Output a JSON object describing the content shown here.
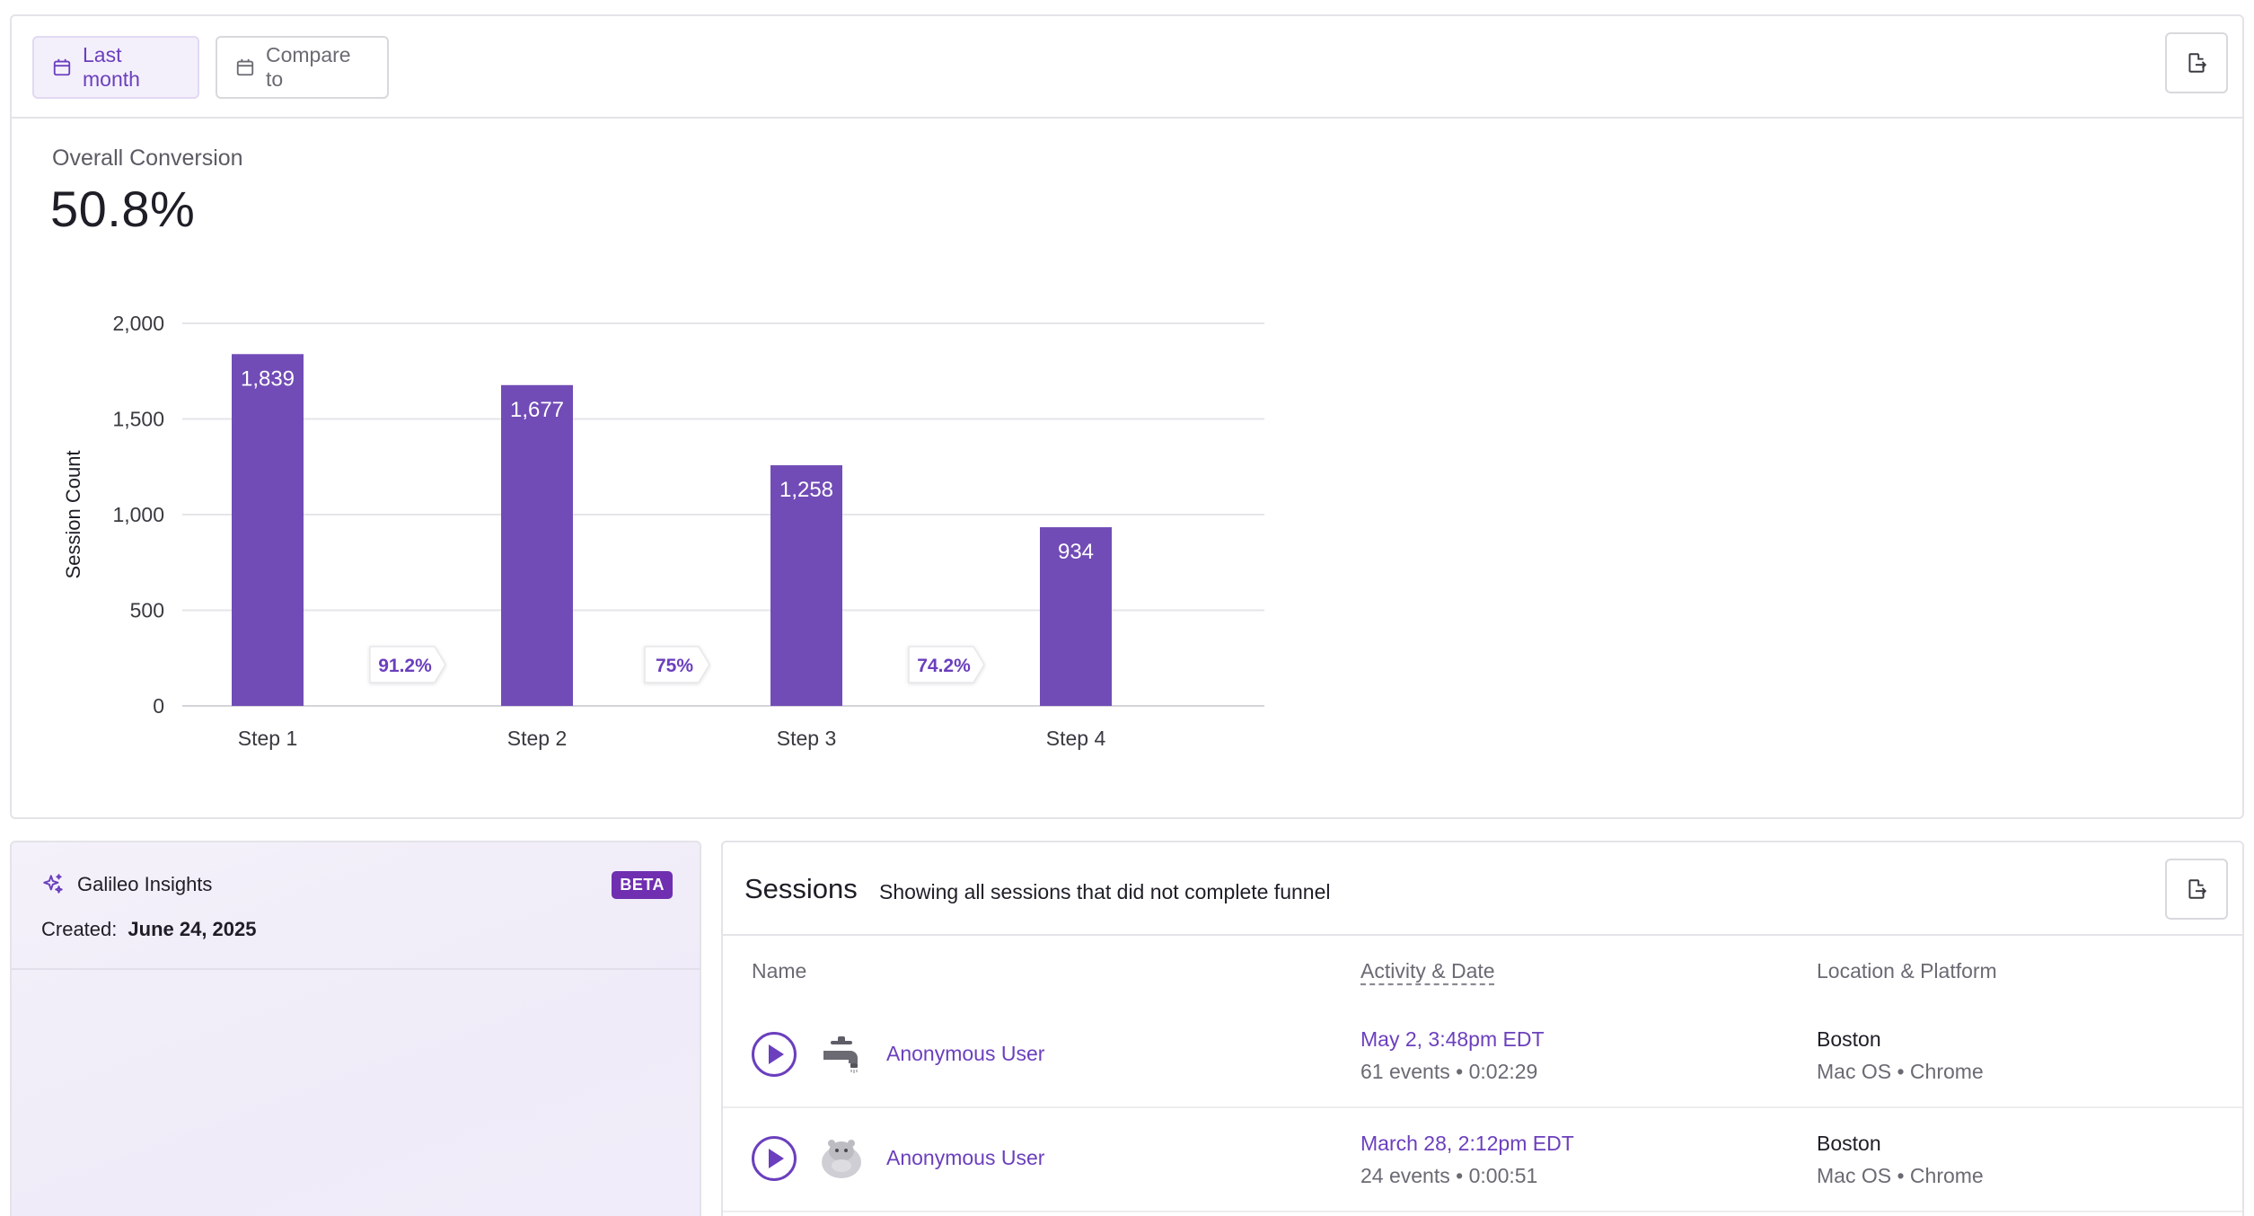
{
  "toolbar": {
    "date_range_label": "Last month",
    "compare_label": "Compare to"
  },
  "overall": {
    "label": "Overall Conversion",
    "value": "50.8%"
  },
  "chart_data": {
    "type": "bar",
    "categories": [
      "Step 1",
      "Step 2",
      "Step 3",
      "Step 4"
    ],
    "values": [
      1839,
      1677,
      1258,
      934
    ],
    "value_labels": [
      "1,839",
      "1,677",
      "1,258",
      "934"
    ],
    "step_conversions": [
      "91.2%",
      "75%",
      "74.2%"
    ],
    "ylabel": "Session Count",
    "ylim": [
      0,
      2000
    ],
    "yticks": [
      0,
      500,
      1000,
      1500,
      2000
    ],
    "ytick_labels": [
      "0",
      "500",
      "1,000",
      "1,500",
      "2,000"
    ],
    "grid": true,
    "colors": {
      "bar": "#714cb6",
      "grid": "#e6e5ea",
      "conversion_text": "#6b3fbd"
    }
  },
  "insights": {
    "title": "Galileo Insights",
    "badge": "BETA",
    "created_label": "Created:",
    "created_date": "June 24, 2025"
  },
  "sessions": {
    "title": "Sessions",
    "subtitle": "Showing all sessions that did not complete funnel",
    "columns": {
      "name": "Name",
      "activity": "Activity & Date",
      "location": "Location & Platform"
    },
    "rows": [
      {
        "user": "Anonymous User",
        "avatar_icon": "faucet-icon",
        "date": "May 2, 3:48pm EDT",
        "events": "61 events",
        "duration": "0:02:29",
        "city": "Boston",
        "os": "Mac OS",
        "browser": "Chrome"
      },
      {
        "user": "Anonymous User",
        "avatar_icon": "hippo-icon",
        "date": "March 28, 2:12pm EDT",
        "events": "24 events",
        "duration": "0:00:51",
        "city": "Boston",
        "os": "Mac OS",
        "browser": "Chrome"
      }
    ]
  },
  "colors": {
    "accent": "#6b3fbd",
    "border": "#e4e3e8",
    "badge": "#6f2fb0"
  }
}
